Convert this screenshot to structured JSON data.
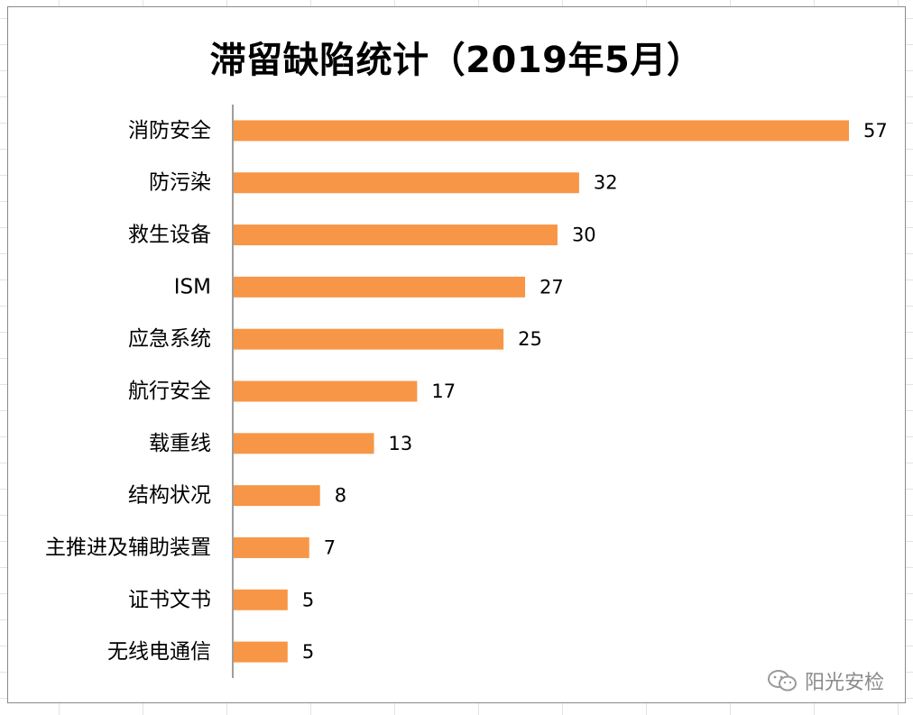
{
  "chart_data": {
    "type": "bar",
    "orientation": "horizontal",
    "title": "滞留缺陷统计（2019年5月）",
    "categories": [
      "消防安全",
      "防污染",
      "救生设备",
      "ISM",
      "应急系统",
      "航行安全",
      "载重线",
      "结构状况",
      "主推进及辅助装置",
      "证书文书",
      "无线电通信"
    ],
    "values": [
      57,
      32,
      30,
      27,
      25,
      17,
      13,
      8,
      7,
      5,
      5
    ],
    "xlim": [
      0,
      57
    ],
    "bar_color": "#F79646",
    "axis_color": "#7F7F7F",
    "data_labels": true,
    "grid": false
  },
  "watermark": {
    "text": "阳光安检",
    "icon": "wechat-icon"
  }
}
